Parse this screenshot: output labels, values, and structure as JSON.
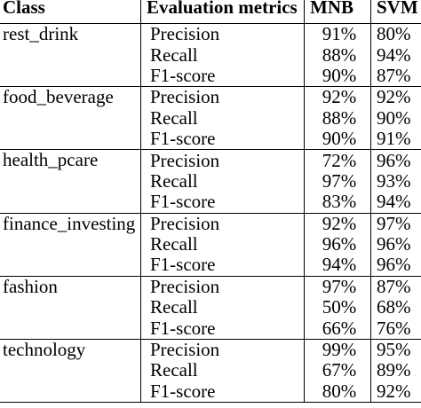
{
  "table": {
    "headers": {
      "class": "Class",
      "metric": "Evaluation metrics",
      "mnb": "MNB",
      "svm": "SVM"
    },
    "groups": [
      {
        "class": "rest_drink",
        "rows": [
          {
            "metric": "Precision",
            "mnb": "91%",
            "svm": "80%"
          },
          {
            "metric": "Recall",
            "mnb": "88%",
            "svm": "94%"
          },
          {
            "metric": "F1-score",
            "mnb": "90%",
            "svm": "87%"
          }
        ]
      },
      {
        "class": "food_beverage",
        "rows": [
          {
            "metric": "Precision",
            "mnb": "92%",
            "svm": "92%"
          },
          {
            "metric": "Recall",
            "mnb": "88%",
            "svm": "90%"
          },
          {
            "metric": "F1-score",
            "mnb": "90%",
            "svm": "91%"
          }
        ]
      },
      {
        "class": "health_pcare",
        "rows": [
          {
            "metric": "Precision",
            "mnb": "72%",
            "svm": "96%"
          },
          {
            "metric": "Recall",
            "mnb": "97%",
            "svm": "93%"
          },
          {
            "metric": "F1-score",
            "mnb": "83%",
            "svm": "94%"
          }
        ]
      },
      {
        "class": "finance_investing",
        "rows": [
          {
            "metric": "Precision",
            "mnb": "92%",
            "svm": "97%"
          },
          {
            "metric": "Recall",
            "mnb": "96%",
            "svm": "96%"
          },
          {
            "metric": "F1-score",
            "mnb": "94%",
            "svm": "96%"
          }
        ]
      },
      {
        "class": "fashion",
        "rows": [
          {
            "metric": "Precision",
            "mnb": "97%",
            "svm": "87%"
          },
          {
            "metric": "Recall",
            "mnb": "50%",
            "svm": "68%"
          },
          {
            "metric": "F1-score",
            "mnb": "66%",
            "svm": "76%"
          }
        ]
      },
      {
        "class": "technology",
        "rows": [
          {
            "metric": "Precision",
            "mnb": "99%",
            "svm": "95%"
          },
          {
            "metric": "Recall",
            "mnb": "67%",
            "svm": "89%"
          },
          {
            "metric": "F1-score",
            "mnb": "80%",
            "svm": "92%"
          }
        ]
      }
    ]
  }
}
